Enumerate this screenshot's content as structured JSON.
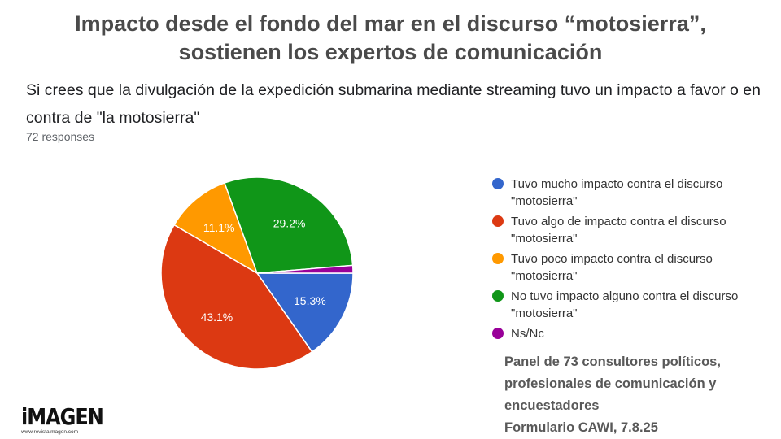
{
  "headline": {
    "line1": "Impacto desde el fondo del mar en el discurso “motosierra”,",
    "line2": "sostienen los expertos de comunicación"
  },
  "question": {
    "text": "Si crees que la divulgación de la expedición submarina mediante streaming tuvo un impacto a favor o en contra de \"la motosierra\"",
    "responses": "72 responses"
  },
  "chart_data": {
    "type": "pie",
    "slices": [
      {
        "label": "Tuvo mucho impacto contra el discurso \"motosierra\"",
        "value": 15.3,
        "display": "15.3%",
        "color": "#3366cc"
      },
      {
        "label": "Tuvo algo de impacto contra el discurso \"motosierra\"",
        "value": 43.1,
        "display": "43.1%",
        "color": "#dc3912"
      },
      {
        "label": "Tuvo poco impacto contra el discurso \"motosierra\"",
        "value": 11.1,
        "display": "11.1%",
        "color": "#ff9900"
      },
      {
        "label": "No tuvo impacto alguno contra el discurso \"motosierra\"",
        "value": 29.2,
        "display": "29.2%",
        "color": "#109618"
      },
      {
        "label": "Ns/Nc",
        "value": 1.3,
        "display": "",
        "color": "#990099"
      }
    ],
    "legend_position": "right"
  },
  "panel": {
    "line1": "Panel de 73 consultores políticos,",
    "line2": "profesionales de comunicación y",
    "line3": "encuestadores",
    "line4": "Formulario CAWI, 7.8.25"
  },
  "logo": {
    "word": "iMAGEN",
    "url": "www.revistaimagen.com"
  }
}
